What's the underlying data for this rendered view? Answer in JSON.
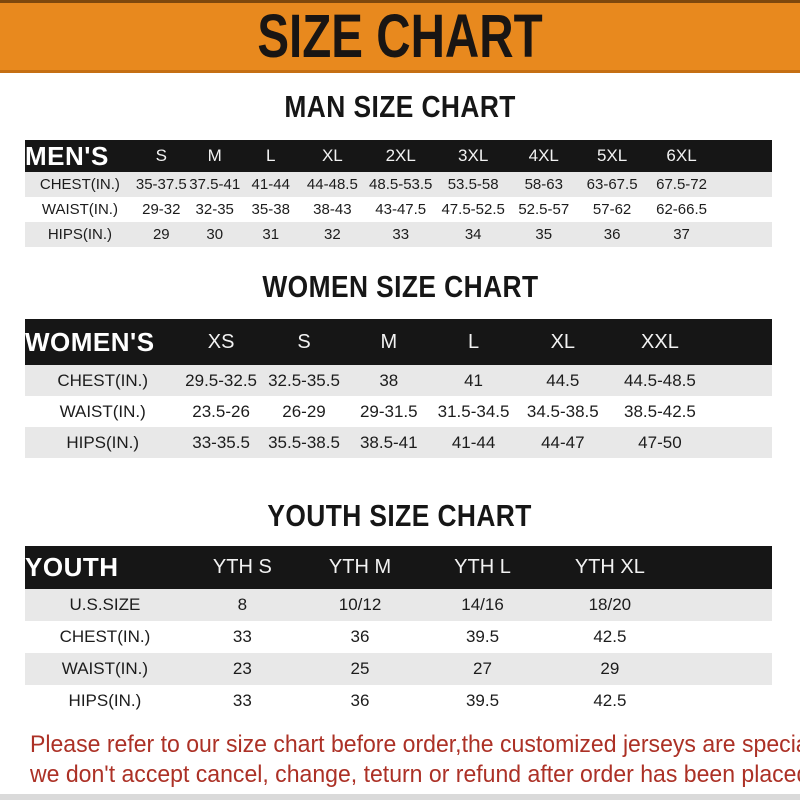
{
  "banner": {
    "title": "SIZE CHART"
  },
  "sections": {
    "men": {
      "title": "MAN SIZE CHART"
    },
    "women": {
      "title": "WOMEN SIZE CHART"
    },
    "youth": {
      "title": "YOUTH SIZE CHART"
    }
  },
  "tables": {
    "men": {
      "label": "MEN'S",
      "sizes": [
        "S",
        "M",
        "L",
        "XL",
        "2XL",
        "3XL",
        "4XL",
        "5XL",
        "6XL"
      ],
      "rows": [
        {
          "label": "CHEST(IN.)",
          "values": [
            "35-37.5",
            "37.5-41",
            "41-44",
            "44-48.5",
            "48.5-53.5",
            "53.5-58",
            "58-63",
            "63-67.5",
            "67.5-72"
          ]
        },
        {
          "label": "WAIST(IN.)",
          "values": [
            "29-32",
            "32-35",
            "35-38",
            "38-43",
            "43-47.5",
            "47.5-52.5",
            "52.5-57",
            "57-62",
            "62-66.5"
          ]
        },
        {
          "label": "HIPS(IN.)",
          "values": [
            "29",
            "30",
            "31",
            "32",
            "33",
            "34",
            "35",
            "36",
            "37"
          ]
        }
      ]
    },
    "women": {
      "label": "WOMEN'S",
      "sizes": [
        "XS",
        "S",
        "M",
        "L",
        "XL",
        "XXL"
      ],
      "rows": [
        {
          "label": "CHEST(IN.)",
          "values": [
            "29.5-32.5",
            "32.5-35.5",
            "38",
            "41",
            "44.5",
            "44.5-48.5"
          ]
        },
        {
          "label": "WAIST(IN.)",
          "values": [
            "23.5-26",
            "26-29",
            "29-31.5",
            "31.5-34.5",
            "34.5-38.5",
            "38.5-42.5"
          ]
        },
        {
          "label": "HIPS(IN.)",
          "values": [
            "33-35.5",
            "35.5-38.5",
            "38.5-41",
            "41-44",
            "44-47",
            "47-50"
          ]
        }
      ]
    },
    "youth": {
      "label": "YOUTH",
      "sizes": [
        "YTH S",
        "YTH M",
        "YTH L",
        "YTH XL"
      ],
      "rows": [
        {
          "label": "U.S.SIZE",
          "values": [
            "8",
            "10/12",
            "14/16",
            "18/20"
          ]
        },
        {
          "label": "CHEST(IN.)",
          "values": [
            "33",
            "36",
            "39.5",
            "42.5"
          ]
        },
        {
          "label": "WAIST(IN.)",
          "values": [
            "23",
            "25",
            "27",
            "29"
          ]
        },
        {
          "label": "HIPS(IN.)",
          "values": [
            "33",
            "36",
            "39.5",
            "42.5"
          ]
        }
      ]
    }
  },
  "note": {
    "line1": "Please refer to our size chart before order,the customized jerseys are special products,",
    "line2": "we don't accept cancel, change, teturn or refund after order has been placed!"
  },
  "colors": {
    "banner_orange": "#E8891E",
    "header_bar": "#161616",
    "row_alt": "#E8E8E8",
    "note_red": "#AC3126"
  }
}
